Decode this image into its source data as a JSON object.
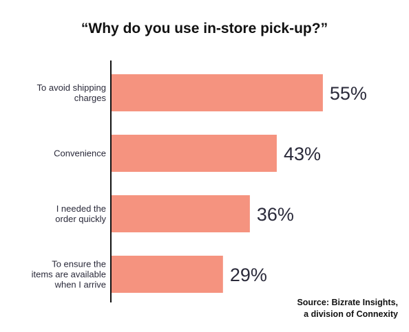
{
  "title": "“Why do you use in-store pick-up?”",
  "source": {
    "line1": "Source: Bizrate Insights,",
    "line2": "a division of Connexity"
  },
  "chart_data": {
    "type": "bar",
    "orientation": "horizontal",
    "title": "“Why do you use in-store pick-up?”",
    "categories": [
      [
        "To avoid shipping",
        "charges"
      ],
      [
        "Convenience"
      ],
      [
        "I needed the",
        "order quickly"
      ],
      [
        "To ensure the",
        "items are available",
        "when I arrive"
      ]
    ],
    "values": [
      55,
      43,
      36,
      29
    ],
    "value_labels": [
      "55%",
      "43%",
      "36%",
      "29%"
    ],
    "xlim": [
      0,
      100
    ],
    "unit": "%",
    "grid": false,
    "legend": "none",
    "bar_color": "#f5937f",
    "axis_color": "#111111"
  }
}
